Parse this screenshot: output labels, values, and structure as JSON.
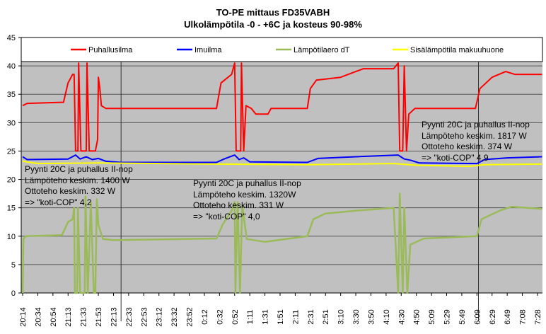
{
  "chart_data": {
    "type": "line",
    "title": "TO-PE mittaus FD35VABH",
    "subtitle": "Ulkolämpötila -0 - +6C ja kosteus 90-98%",
    "xlabel": "",
    "ylabel": "",
    "ylim": [
      0,
      45
    ],
    "yticks": [
      0,
      5,
      10,
      15,
      20,
      25,
      30,
      35,
      40,
      45
    ],
    "grid": true,
    "legend_placement": "top",
    "categories": [
      "20:14",
      "20:34",
      "20:54",
      "21:13",
      "21:33",
      "21:53",
      "22:13",
      "22:33",
      "22:53",
      "23:12",
      "23:32",
      "23:52",
      "0:12",
      "0:32",
      "0:52",
      "1:11",
      "1:31",
      "1:51",
      "2:11",
      "2:31",
      "2:51",
      "3:10",
      "3:30",
      "3:50",
      "4:10",
      "4:30",
      "4:50",
      "5:09",
      "5:29",
      "5:49",
      "6:09",
      "6:29",
      "6:49",
      "7:08",
      "7:28"
    ],
    "markers_at_category_index": [
      6.5,
      30.1
    ],
    "series": [
      {
        "name": "Puhallusilma",
        "color": "#ff0000",
        "points": [
          [
            0,
            33
          ],
          [
            0.3,
            33.4
          ],
          [
            2.7,
            33.6
          ],
          [
            3.0,
            37
          ],
          [
            3.3,
            38.5
          ],
          [
            3.4,
            38.5
          ],
          [
            3.5,
            25
          ],
          [
            3.65,
            25
          ],
          [
            3.7,
            40.5
          ],
          [
            3.85,
            25
          ],
          [
            4.2,
            25
          ],
          [
            4.25,
            40.5
          ],
          [
            4.4,
            25
          ],
          [
            4.8,
            25
          ],
          [
            4.95,
            27
          ],
          [
            5.0,
            38
          ],
          [
            5.1,
            36
          ],
          [
            5.2,
            33
          ],
          [
            5.5,
            32.5
          ],
          [
            12.8,
            32.5
          ],
          [
            13.1,
            37
          ],
          [
            13.8,
            38.5
          ],
          [
            14.0,
            40.5
          ],
          [
            14.1,
            25
          ],
          [
            14.4,
            25
          ],
          [
            14.45,
            40.5
          ],
          [
            14.6,
            25
          ],
          [
            14.75,
            33
          ],
          [
            15.1,
            32.5
          ],
          [
            15.4,
            31.5
          ],
          [
            16.2,
            31.5
          ],
          [
            16.4,
            32.5
          ],
          [
            18.8,
            32.5
          ],
          [
            19.0,
            36
          ],
          [
            19.4,
            37.5
          ],
          [
            21.0,
            38
          ],
          [
            22.0,
            39
          ],
          [
            22.5,
            39.5
          ],
          [
            24.5,
            39.5
          ],
          [
            24.8,
            40.5
          ],
          [
            24.9,
            25
          ],
          [
            25.1,
            25
          ],
          [
            25.2,
            40
          ],
          [
            25.35,
            25
          ],
          [
            25.5,
            31.5
          ],
          [
            25.9,
            32.5
          ],
          [
            29.9,
            32.5
          ],
          [
            30.2,
            36
          ],
          [
            31.0,
            38
          ],
          [
            31.9,
            39
          ],
          [
            32.5,
            38.5
          ],
          [
            34.3,
            38.5
          ]
        ]
      },
      {
        "name": "Imuilma",
        "color": "#0000ff",
        "points": [
          [
            0,
            24
          ],
          [
            0.3,
            23.5
          ],
          [
            3.0,
            23.6
          ],
          [
            3.5,
            24.3
          ],
          [
            3.8,
            23.6
          ],
          [
            4.2,
            24.0
          ],
          [
            4.6,
            23.5
          ],
          [
            5.0,
            23.7
          ],
          [
            5.5,
            23.2
          ],
          [
            6.5,
            23.0
          ],
          [
            12.8,
            23.0
          ],
          [
            13.3,
            23.6
          ],
          [
            14.0,
            24.3
          ],
          [
            14.3,
            23.5
          ],
          [
            14.6,
            23.8
          ],
          [
            15.0,
            23.1
          ],
          [
            18.8,
            23.0
          ],
          [
            19.5,
            23.7
          ],
          [
            22.0,
            24.0
          ],
          [
            24.8,
            24.3
          ],
          [
            25.2,
            23.6
          ],
          [
            25.6,
            23.4
          ],
          [
            26.2,
            22.9
          ],
          [
            30.0,
            22.8
          ],
          [
            30.5,
            23.5
          ],
          [
            32.0,
            23.8
          ],
          [
            34.3,
            24.0
          ]
        ]
      },
      {
        "name": "Lämpötilaero dT",
        "color": "#9bbb59",
        "points": [
          [
            0,
            0
          ],
          [
            0.05,
            9.5
          ],
          [
            0.2,
            10
          ],
          [
            2.6,
            10.2
          ],
          [
            3.0,
            12.5
          ],
          [
            3.3,
            13
          ],
          [
            3.4,
            15
          ],
          [
            3.45,
            0
          ],
          [
            3.6,
            0
          ],
          [
            3.65,
            15
          ],
          [
            3.8,
            0
          ],
          [
            4.1,
            0
          ],
          [
            4.15,
            17
          ],
          [
            4.3,
            0
          ],
          [
            4.5,
            16
          ],
          [
            4.7,
            0
          ],
          [
            4.8,
            0
          ],
          [
            4.9,
            16.5
          ],
          [
            5.0,
            12
          ],
          [
            5.3,
            9.5
          ],
          [
            6.0,
            9.3
          ],
          [
            12.8,
            9.6
          ],
          [
            13.2,
            12
          ],
          [
            13.8,
            14.5
          ],
          [
            14.0,
            16
          ],
          [
            14.05,
            0
          ],
          [
            14.2,
            16
          ],
          [
            14.35,
            0
          ],
          [
            14.5,
            15.5
          ],
          [
            14.8,
            9.5
          ],
          [
            16.0,
            9.0
          ],
          [
            18.8,
            10
          ],
          [
            19.2,
            13
          ],
          [
            20.0,
            14
          ],
          [
            22.0,
            14.5
          ],
          [
            24.5,
            15
          ],
          [
            24.8,
            0
          ],
          [
            24.9,
            17.5
          ],
          [
            25.1,
            0
          ],
          [
            25.2,
            15
          ],
          [
            25.4,
            0
          ],
          [
            25.6,
            8.5
          ],
          [
            26.5,
            9.6
          ],
          [
            30.0,
            10
          ],
          [
            30.3,
            13
          ],
          [
            31.5,
            14.5
          ],
          [
            32.3,
            15.2
          ],
          [
            34.3,
            14.8
          ]
        ]
      },
      {
        "name": "Sisälämpötila makuuhuone",
        "color": "#ffff00",
        "points": [
          [
            0,
            23.2
          ],
          [
            1.0,
            22.8
          ],
          [
            5.0,
            22.9
          ],
          [
            12.8,
            22.7
          ],
          [
            18.8,
            22.6
          ],
          [
            24.5,
            22.8
          ],
          [
            26.0,
            22.5
          ],
          [
            29.5,
            22.3
          ],
          [
            30.5,
            22.6
          ],
          [
            34.3,
            22.7
          ]
        ]
      }
    ],
    "annotations": [
      {
        "lines": [
          "Pyynti 20C ja puhallus II-nop",
          "Lämpöteho keskim. 1400 W",
          "Ottoteho keskim. 332 W",
          "=> \"koti-COP\" 4,2"
        ]
      },
      {
        "lines": [
          "Pyynti 20C ja puhallus II-nop",
          "Lämpöteho keskim. 1320W",
          "Ottoteho keskim. 331 W",
          "=> \"koti-COP\" 4,0"
        ]
      },
      {
        "lines": [
          "Pyynti 20C ja puhallus II-nop",
          "Lämpöteho keskim. 1817 W",
          "Ottoteho keskim. 374 W",
          "=> \"koti-COP\" 4,9"
        ]
      }
    ]
  }
}
